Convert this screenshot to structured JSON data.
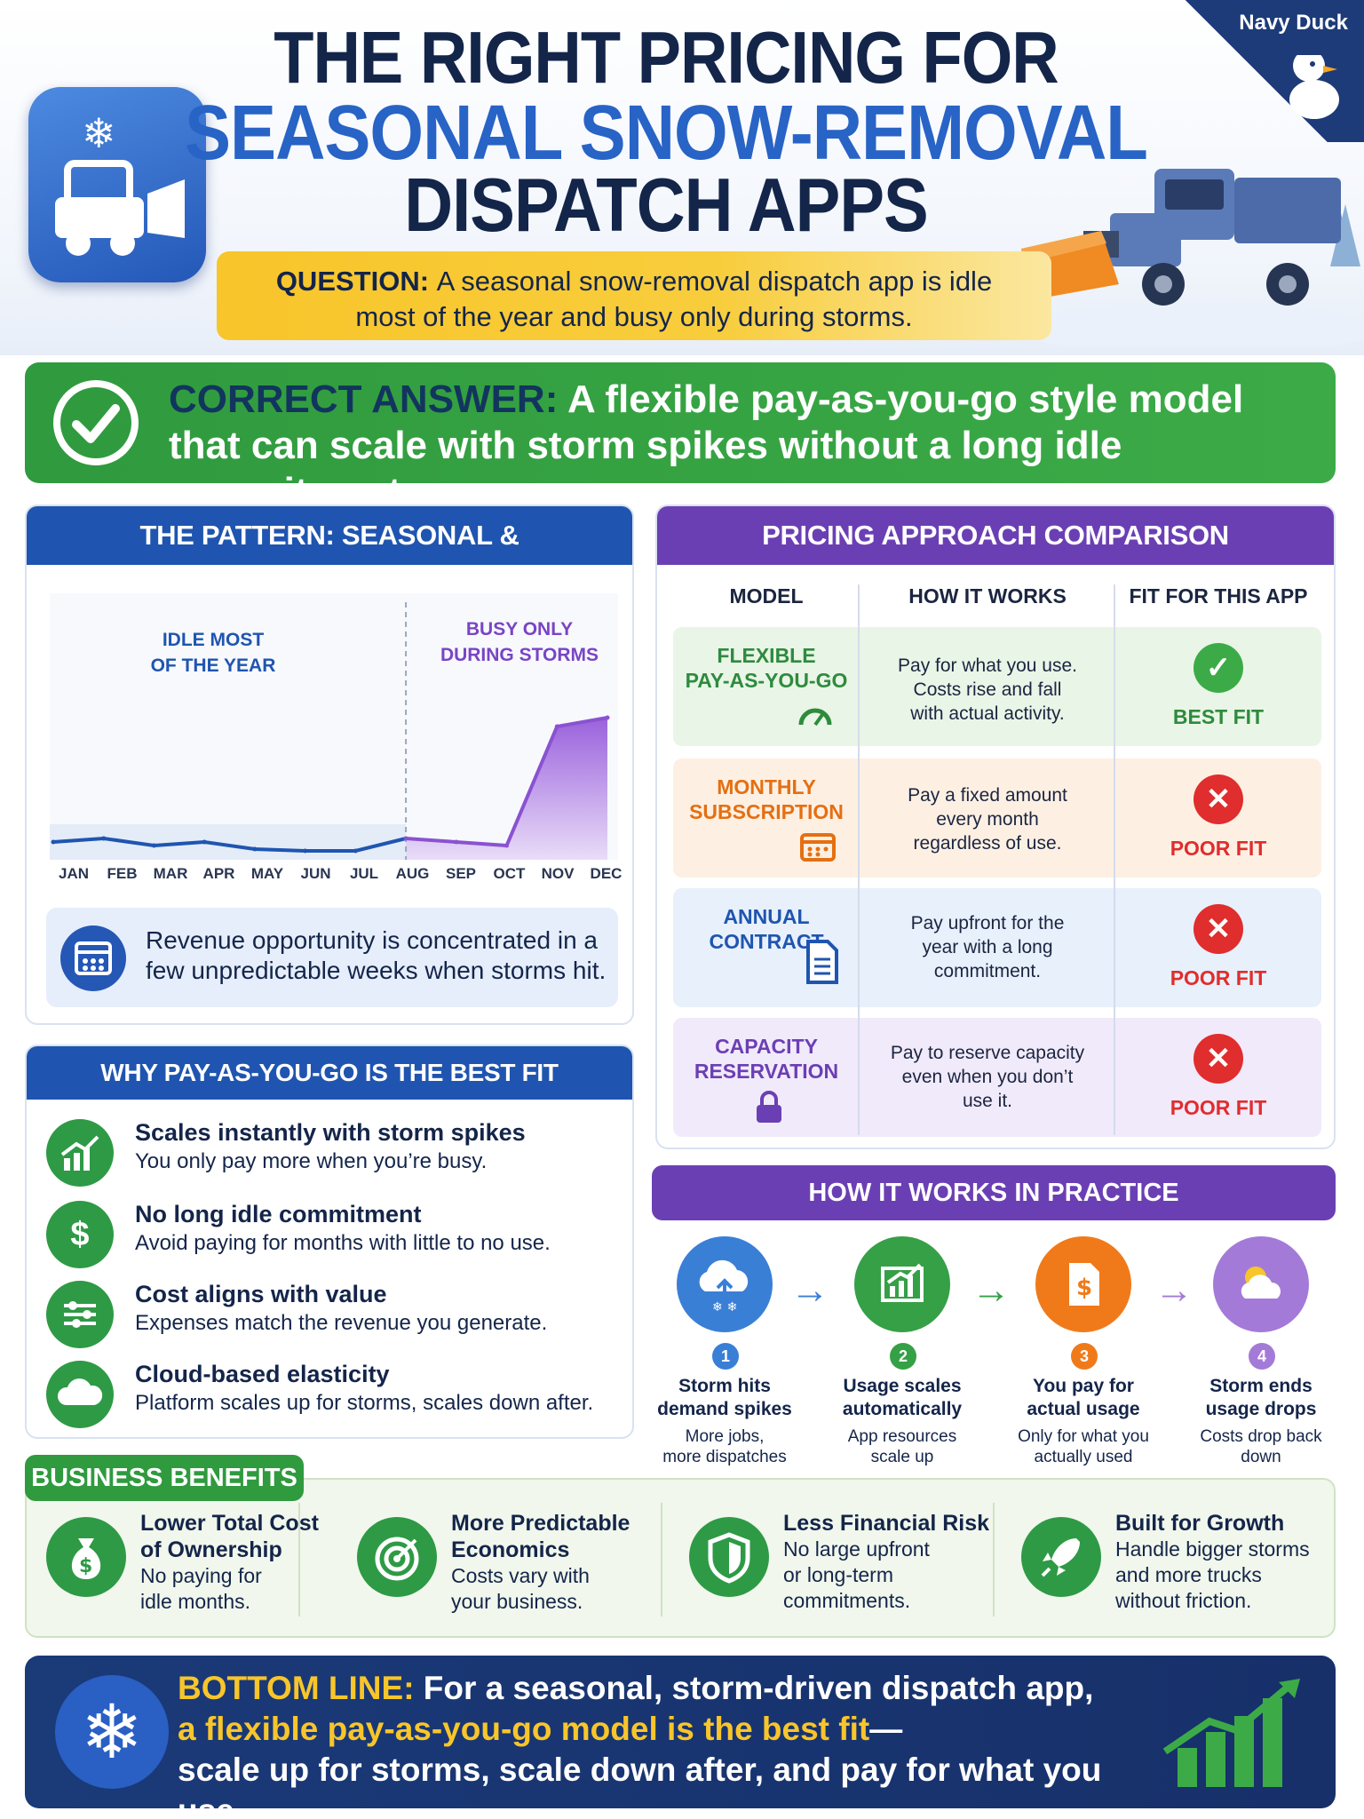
{
  "brand": "Navy Duck",
  "header": {
    "title_line1": "THE RIGHT PRICING FOR",
    "title_line2": "SEASONAL SNOW-REMOVAL",
    "title_line3": "DISPATCH APPS",
    "question_label": "QUESTION:",
    "question_text_1": "A seasonal snow-removal dispatch app is idle",
    "question_text_2": "most of the year and busy only during storms."
  },
  "answer": {
    "label": "CORRECT ANSWER:",
    "text_1": "A flexible pay-as-you-go style model",
    "text_2": "that can scale with storm spikes without a long idle commitment."
  },
  "pattern": {
    "heading": "THE PATTERN: SEASONAL & UNPREDICTABLE",
    "idle_label_1": "IDLE MOST",
    "idle_label_2": "OF THE YEAR",
    "busy_label_1": "BUSY ONLY",
    "busy_label_2": "DURING STORMS",
    "months": [
      "JAN",
      "FEB",
      "MAR",
      "APR",
      "MAY",
      "JUN",
      "JUL",
      "AUG",
      "SEP",
      "OCT",
      "NOV",
      "DEC"
    ],
    "revenue_text_1": "Revenue opportunity is concentrated in a",
    "revenue_text_2": "few unpredictable weeks when storms hit."
  },
  "chart_data": {
    "type": "area",
    "x": [
      "JAN",
      "FEB",
      "MAR",
      "APR",
      "MAY",
      "JUN",
      "JUL",
      "AUG",
      "SEP",
      "OCT",
      "NOV",
      "DEC"
    ],
    "series": [
      {
        "values": [
          0.1,
          0.12,
          0.08,
          0.1,
          0.06,
          0.05,
          0.05,
          0.12,
          0.1,
          0.08,
          0.75,
          0.8
        ]
      }
    ],
    "colors": {
      "idle": "#1f55b0",
      "busy": "#8a52d0"
    }
  },
  "compare": {
    "heading": "PRICING APPROACH COMPARISON",
    "col_model": "MODEL",
    "col_how": "HOW IT WORKS",
    "col_fit": "FIT FOR THIS APP",
    "rows": [
      {
        "model_1": "FLEXIBLE",
        "model_2": "PAY-AS-YOU-GO",
        "how_1": "Pay for what you use.",
        "how_2": "Costs rise and fall",
        "how_3": "with actual activity.",
        "fit": "BEST FIT",
        "icon": "gauge-icon"
      },
      {
        "model_1": "MONTHLY",
        "model_2": "SUBSCRIPTION",
        "how_1": "Pay a fixed amount",
        "how_2": "every month",
        "how_3": "regardless of use.",
        "fit": "POOR FIT",
        "icon": "calendar-icon"
      },
      {
        "model_1": "ANNUAL",
        "model_2": "CONTRACT",
        "how_1": "Pay upfront for the",
        "how_2": "year with a long",
        "how_3": "commitment.",
        "fit": "POOR FIT",
        "icon": "document-icon"
      },
      {
        "model_1": "CAPACITY",
        "model_2": "RESERVATION",
        "how_1": "Pay to reserve capacity",
        "how_2": "even when you don’t",
        "how_3": "use it.",
        "fit": "POOR FIT",
        "icon": "lock-icon"
      }
    ]
  },
  "why": {
    "heading": "WHY PAY-AS-YOU-GO IS THE BEST FIT",
    "items": [
      {
        "title": "Scales instantly with storm spikes",
        "desc": "You only pay more when you’re busy.",
        "icon": "growth-chart-icon"
      },
      {
        "title": "No long idle commitment",
        "desc": "Avoid paying for months with little to no use.",
        "icon": "dollar-icon"
      },
      {
        "title": "Cost aligns with value",
        "desc": "Expenses match the revenue you generate.",
        "icon": "sliders-icon"
      },
      {
        "title": "Cloud-based elasticity",
        "desc": "Platform scales up for storms, scales down after.",
        "icon": "cloud-icon"
      }
    ]
  },
  "practice": {
    "heading": "HOW IT WORKS IN PRACTICE",
    "steps": [
      {
        "num": "1",
        "title_1": "Storm hits",
        "title_2": "demand spikes",
        "desc_1": "More jobs,",
        "desc_2": "more dispatches",
        "icon": "storm-cloud-icon",
        "color": "#3a7fd6"
      },
      {
        "num": "2",
        "title_1": "Usage scales",
        "title_2": "automatically",
        "desc_1": "App resources",
        "desc_2": "scale up",
        "icon": "bar-chart-icon",
        "color": "#35a046"
      },
      {
        "num": "3",
        "title_1": "You pay for",
        "title_2": "actual usage",
        "desc_1": "Only for what you",
        "desc_2": "actually used",
        "icon": "invoice-icon",
        "color": "#f07a1a"
      },
      {
        "num": "4",
        "title_1": "Storm ends",
        "title_2": "usage drops",
        "desc_1": "Costs drop back",
        "desc_2": "down",
        "icon": "sun-cloud-icon",
        "color": "#a47ad8"
      }
    ]
  },
  "benefits": {
    "heading": "BUSINESS BENEFITS",
    "items": [
      {
        "title_1": "Lower Total Cost",
        "title_2": "of Ownership",
        "desc_1": "No paying for",
        "desc_2": "idle months.",
        "icon": "money-bag-icon"
      },
      {
        "title_1": "More Predictable",
        "title_2": "Economics",
        "desc_1": "Costs vary with",
        "desc_2": "your business.",
        "icon": "target-icon"
      },
      {
        "title_1": "Less Financial Risk",
        "title_2": "",
        "desc_1": "No large upfront",
        "desc_2": "or long-term",
        "desc_3": "commitments.",
        "icon": "shield-icon"
      },
      {
        "title_1": "Built for Growth",
        "title_2": "",
        "desc_1": "Handle bigger storms",
        "desc_2": "and more trucks",
        "desc_3": "without friction.",
        "icon": "rocket-icon"
      }
    ]
  },
  "bottom": {
    "label": "BOTTOM LINE:",
    "text_1": "For a seasonal, storm-driven dispatch app,",
    "text_2": "a flexible pay-as-you-go model is the best fit",
    "text_2_dash": "—",
    "text_3": "scale up for storms, scale down after, and pay for what you use."
  }
}
